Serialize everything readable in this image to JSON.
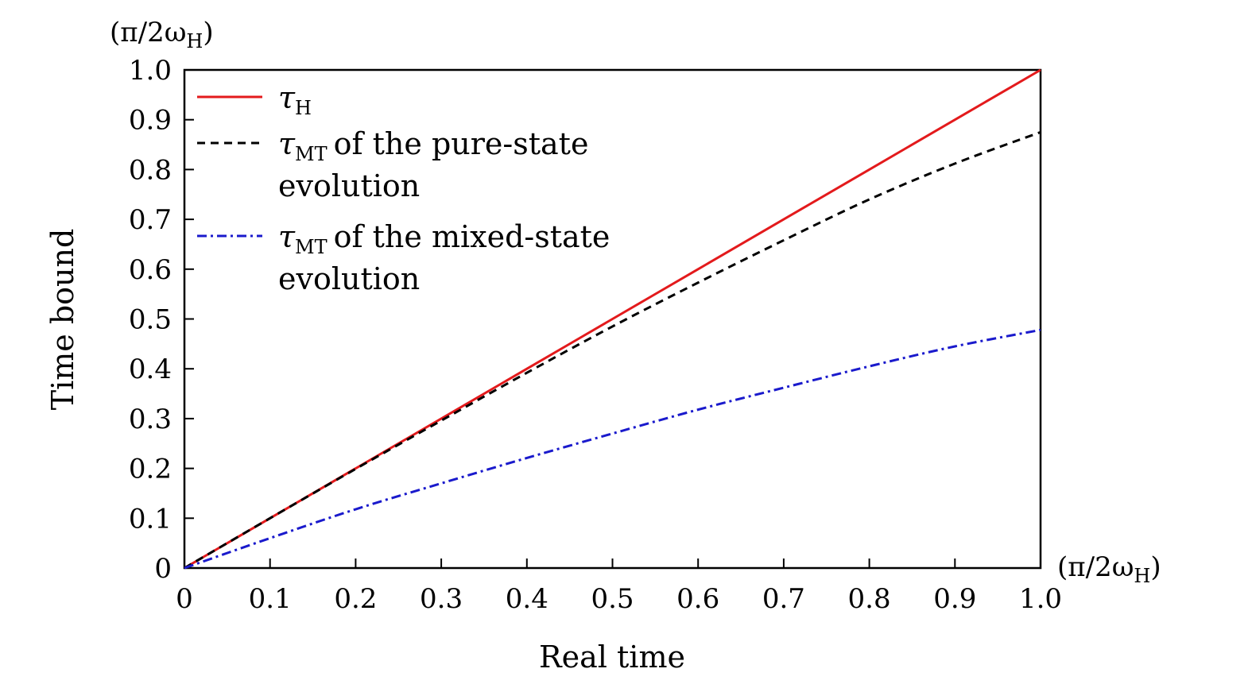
{
  "chart_data": {
    "type": "line",
    "xlabel": "Real time",
    "ylabel": "Time bound",
    "x_unit": "(π/2ω",
    "x_unit_sub": "H",
    "x_unit_close": ")",
    "y_unit": "(π/2ω",
    "y_unit_sub": "H",
    "y_unit_close": ")",
    "xlim": [
      0,
      1.0
    ],
    "ylim": [
      0,
      1.0
    ],
    "xticks": [
      "0",
      "0.1",
      "0.2",
      "0.3",
      "0.4",
      "0.5",
      "0.6",
      "0.7",
      "0.8",
      "0.9",
      "1.0"
    ],
    "yticks": [
      "0",
      "0.1",
      "0.2",
      "0.3",
      "0.4",
      "0.5",
      "0.6",
      "0.7",
      "0.8",
      "0.9",
      "1.0"
    ],
    "grid": false,
    "legend_position": "top-left",
    "x": [
      0,
      0.1,
      0.2,
      0.3,
      0.4,
      0.5,
      0.6,
      0.7,
      0.8,
      0.9,
      1.0
    ],
    "series": [
      {
        "symbol": "τ",
        "sub": "H",
        "text_line1": "",
        "text_line2": "",
        "color": "#e31a1c",
        "dash": "solid",
        "values": [
          0,
          0.1,
          0.2,
          0.3,
          0.4,
          0.5,
          0.6,
          0.7,
          0.8,
          0.9,
          1.0
        ]
      },
      {
        "symbol": "τ",
        "sub": "MT",
        "text_line1": "of the pure-state",
        "text_line2": "evolution",
        "color": "#000000",
        "dash": "dashed",
        "values": [
          0,
          0.1,
          0.199,
          0.296,
          0.392,
          0.485,
          0.573,
          0.658,
          0.74,
          0.812,
          0.875
        ]
      },
      {
        "symbol": "τ",
        "sub": "MT",
        "text_line1": "of the mixed-state",
        "text_line2": "evolution",
        "color": "#1a1acc",
        "dash": "dashdot",
        "values": [
          0,
          0.06,
          0.118,
          0.17,
          0.221,
          0.27,
          0.318,
          0.362,
          0.405,
          0.445,
          0.478
        ]
      }
    ]
  }
}
